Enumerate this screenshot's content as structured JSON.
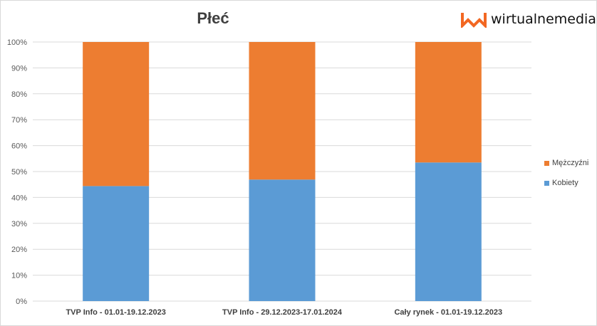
{
  "logo": {
    "text": "wirtualnemedia",
    "color": "#f26722"
  },
  "chart_data": {
    "type": "bar",
    "stacked": true,
    "title": "Płeć",
    "categories": [
      "TVP Info - 01.01-19.12.2023",
      "TVP Info - 29.12.2023-17.01.2024",
      "Cały rynek - 01.01-19.12.2023"
    ],
    "series": [
      {
        "name": "Kobiety",
        "values": [
          44.4,
          46.9,
          53.5
        ],
        "color": "#5b9bd5"
      },
      {
        "name": "Mężczyźni",
        "values": [
          55.6,
          53.1,
          46.5
        ],
        "color": "#ed7d31"
      }
    ],
    "ylim": [
      0,
      100
    ],
    "yticks": [
      "0%",
      "10%",
      "20%",
      "30%",
      "40%",
      "50%",
      "60%",
      "70%",
      "80%",
      "90%",
      "100%"
    ],
    "grid": true,
    "legend": "right"
  }
}
